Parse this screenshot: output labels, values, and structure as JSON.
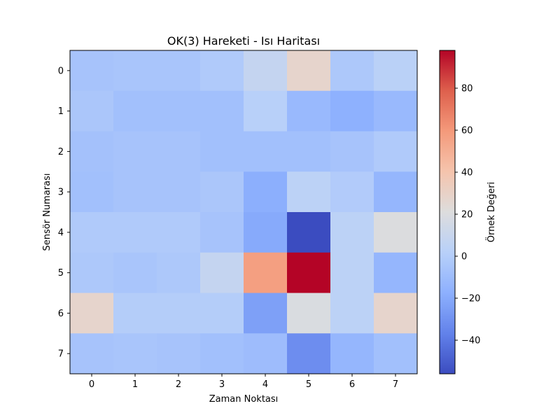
{
  "chart_data": {
    "type": "heatmap",
    "title": "OK(3) Hareketi - Isı Haritası",
    "xlabel": "Zaman Noktası",
    "ylabel": "Sensör Numarası",
    "x": [
      "0",
      "1",
      "2",
      "3",
      "4",
      "5",
      "6",
      "7"
    ],
    "y": [
      "0",
      "1",
      "2",
      "3",
      "4",
      "5",
      "6",
      "7"
    ],
    "values": [
      [
        -6,
        -5,
        -5,
        -2,
        8,
        28,
        -3,
        3
      ],
      [
        -4,
        -8,
        -8,
        -8,
        2,
        -12,
        -17,
        -12
      ],
      [
        -7,
        -6,
        -6,
        -8,
        -8,
        -8,
        -6,
        -2
      ],
      [
        -8,
        -6,
        -6,
        -4,
        -18,
        4,
        -1,
        -14
      ],
      [
        -2,
        -2,
        -2,
        -6,
        -20,
        -56,
        4,
        20
      ],
      [
        -3,
        -5,
        -3,
        8,
        57,
        98,
        4,
        -14
      ],
      [
        28,
        0,
        0,
        0,
        -24,
        19,
        4,
        28
      ],
      [
        -6,
        -5,
        -6,
        -8,
        -10,
        -32,
        -14,
        -8
      ]
    ],
    "colormap": "coolwarm",
    "vmin": -56,
    "vmax": 98,
    "colorbar": {
      "label": "Örnek Değeri",
      "ticks": [
        "−40",
        "−20",
        "0",
        "20",
        "40",
        "60",
        "80"
      ],
      "tick_values": [
        -40,
        -20,
        0,
        20,
        40,
        60,
        80
      ]
    }
  }
}
